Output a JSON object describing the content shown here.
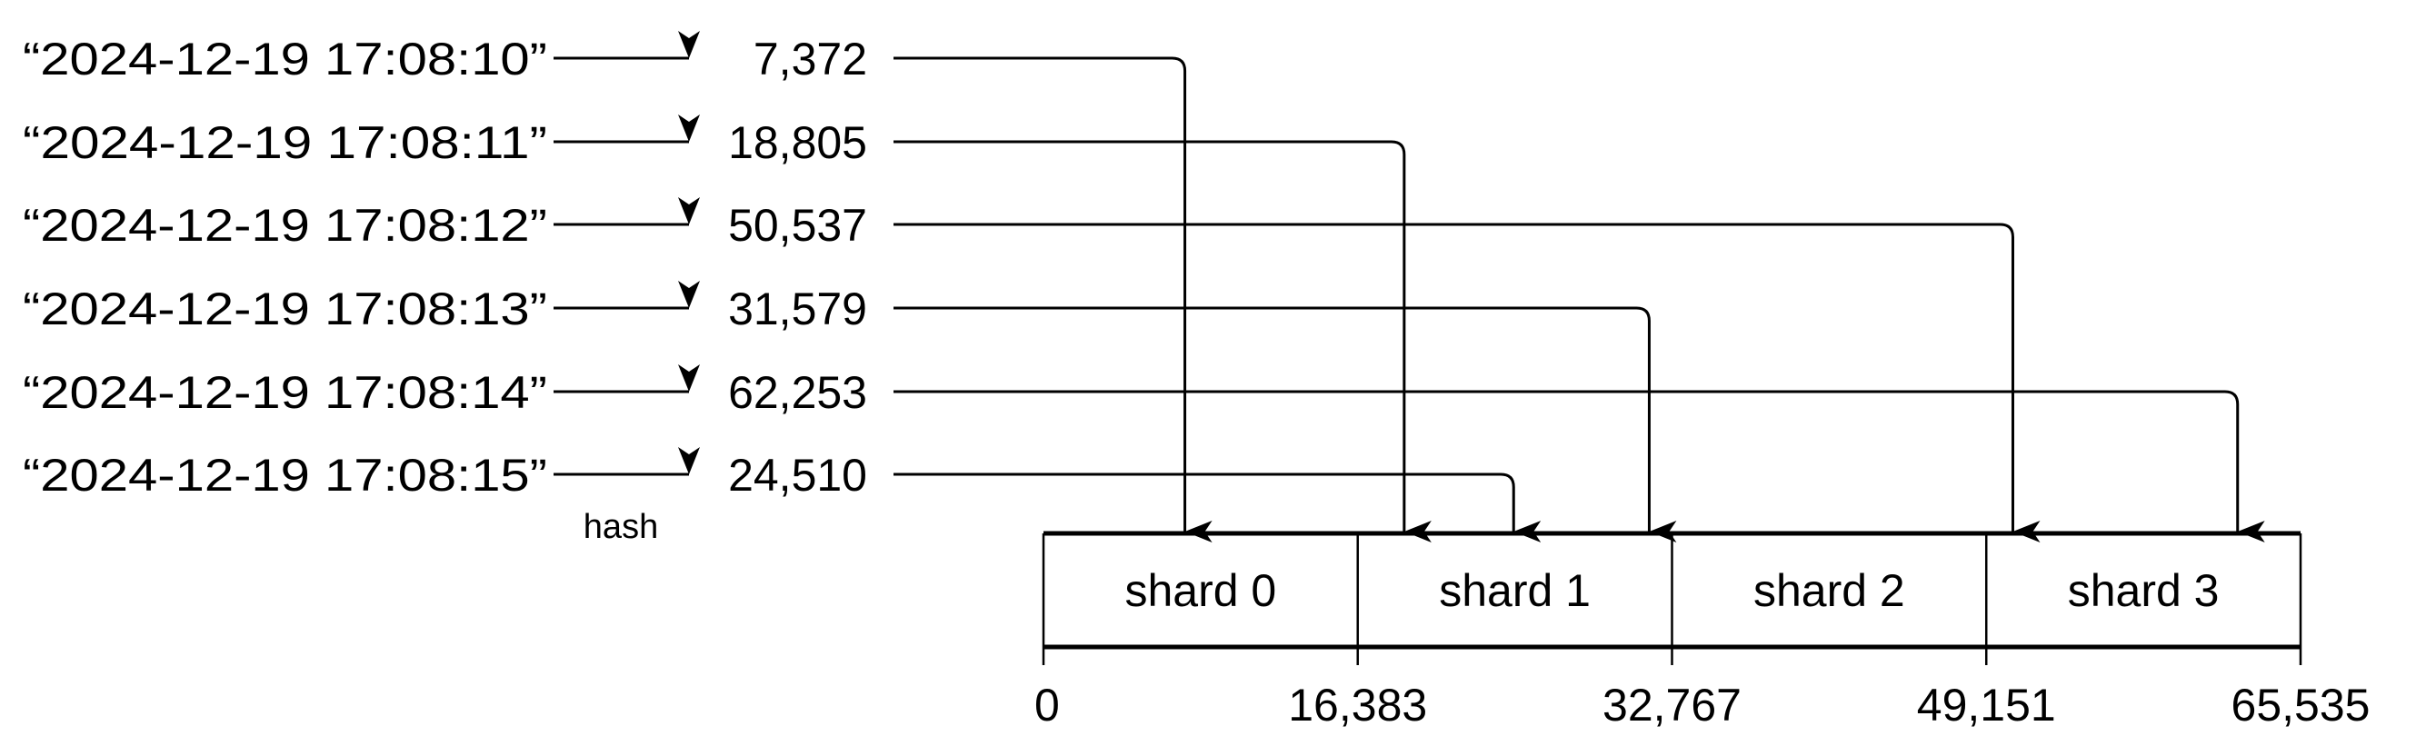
{
  "hash_label": "hash",
  "range_min": 0,
  "range_max": 65535,
  "rows": [
    {
      "key": "“2024-12-19 17:08:10”",
      "hash_text": "7,372",
      "hash": 7372
    },
    {
      "key": "“2024-12-19 17:08:11”",
      "hash_text": "18,805",
      "hash": 18805
    },
    {
      "key": "“2024-12-19 17:08:12”",
      "hash_text": "50,537",
      "hash": 50537
    },
    {
      "key": "“2024-12-19 17:08:13”",
      "hash_text": "31,579",
      "hash": 31579
    },
    {
      "key": "“2024-12-19 17:08:14”",
      "hash_text": "62,253",
      "hash": 62253
    },
    {
      "key": "“2024-12-19 17:08:15”",
      "hash_text": "24,510",
      "hash": 24510
    }
  ],
  "shards": [
    {
      "label": "shard 0"
    },
    {
      "label": "shard 1"
    },
    {
      "label": "shard 2"
    },
    {
      "label": "shard 3"
    }
  ],
  "boundaries": [
    {
      "label": "0",
      "value": 0
    },
    {
      "label": "16,383",
      "value": 16383
    },
    {
      "label": "32,767",
      "value": 32767
    },
    {
      "label": "49,151",
      "value": 49151
    },
    {
      "label": "65,535",
      "value": 65535
    }
  ]
}
